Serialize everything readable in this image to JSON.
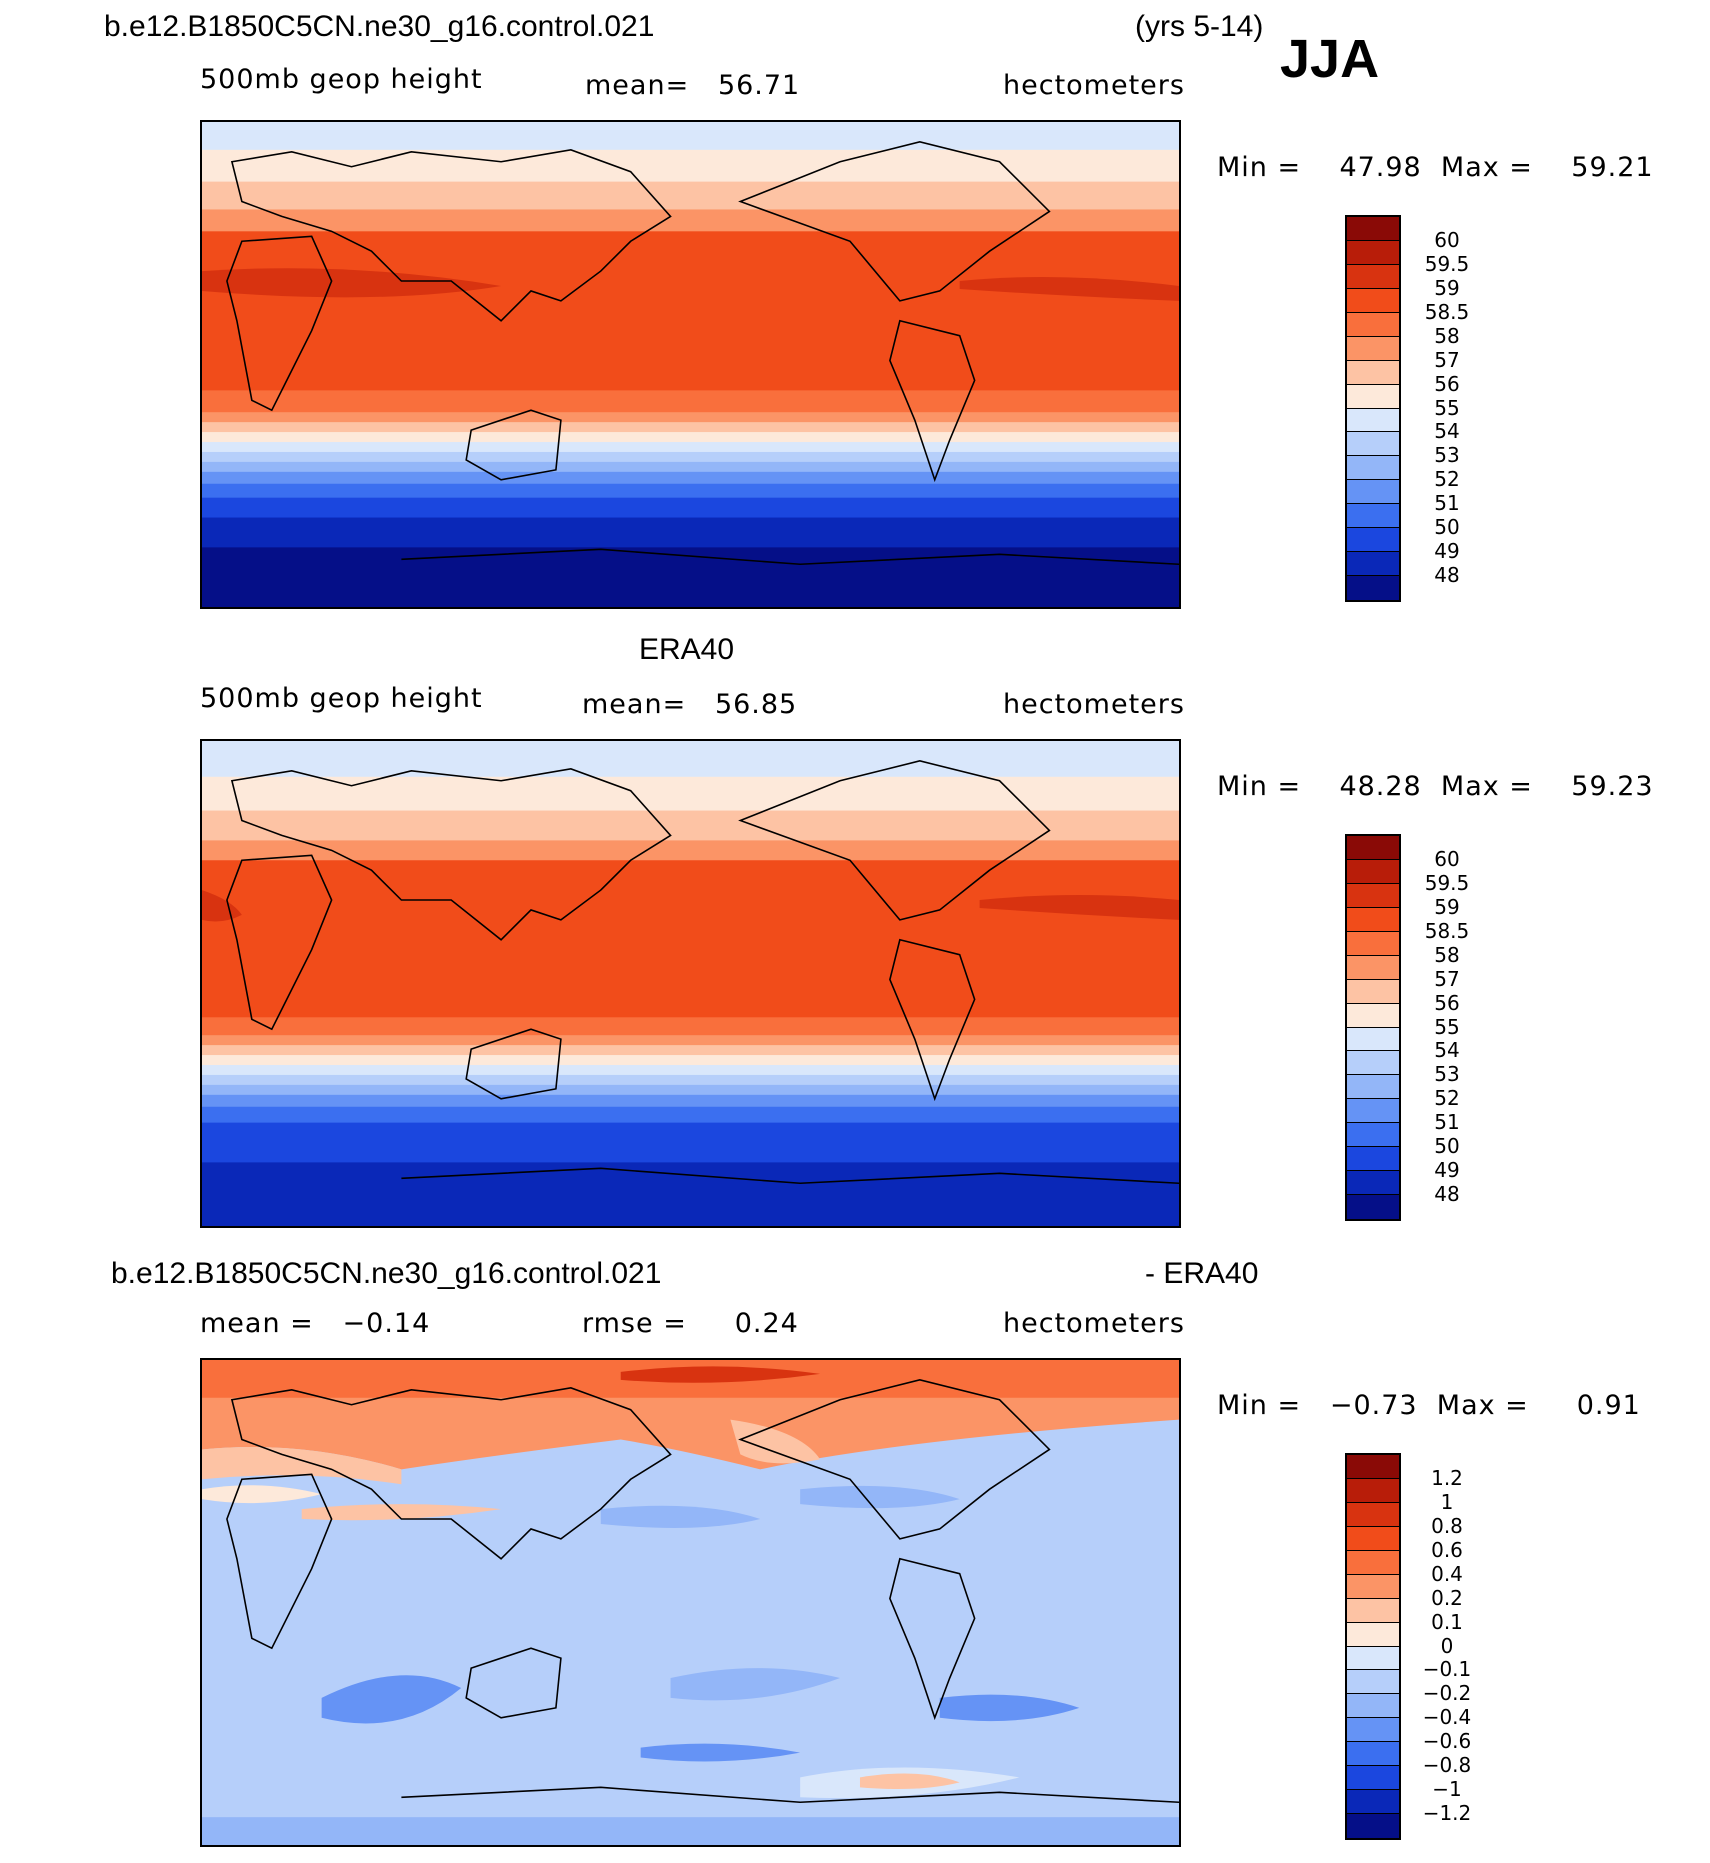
{
  "case_name": "b.e12.B1850C5CN.ne30_g16.control.021",
  "years": "(yrs 5-14)",
  "season": "JJA",
  "panels": [
    {
      "title": "",
      "variable": "500mb geop height",
      "stat1": "mean=   56.71",
      "units": "hectometers",
      "minmax": "Min =    47.98  Max =    59.21",
      "levels": [
        "60",
        "59.5",
        "59",
        "58.5",
        "58",
        "57",
        "56",
        "55",
        "54",
        "53",
        "52",
        "51",
        "50",
        "49",
        "48"
      ],
      "colors": [
        "#8a0a06",
        "#b81d09",
        "#d83310",
        "#f14c1a",
        "#f96f3c",
        "#fb9466",
        "#fdc3a4",
        "#fde9da",
        "#d9e7fb",
        "#b6cffa",
        "#93b6f8",
        "#6593f5",
        "#3b6ff0",
        "#1b47df",
        "#0a28b8",
        "#050f88"
      ]
    },
    {
      "title": "ERA40",
      "variable": "500mb geop height",
      "stat1": "mean=   56.85",
      "units": "hectometers",
      "minmax": "Min =    48.28  Max =    59.23",
      "levels": [
        "60",
        "59.5",
        "59",
        "58.5",
        "58",
        "57",
        "56",
        "55",
        "54",
        "53",
        "52",
        "51",
        "50",
        "49",
        "48"
      ],
      "colors": [
        "#8a0a06",
        "#b81d09",
        "#d83310",
        "#f14c1a",
        "#f96f3c",
        "#fb9466",
        "#fdc3a4",
        "#fde9da",
        "#d9e7fb",
        "#b6cffa",
        "#93b6f8",
        "#6593f5",
        "#3b6ff0",
        "#1b47df",
        "#0a28b8",
        "#050f88"
      ]
    },
    {
      "title_left": "b.e12.B1850C5CN.ne30_g16.control.021",
      "title_right": "- ERA40",
      "stat1": "mean =   −0.14",
      "stat2": "rmse =     0.24",
      "units": "hectometers",
      "minmax": "Min =   −0.73  Max =     0.91",
      "levels": [
        "1.2",
        "1",
        "0.8",
        "0.6",
        "0.4",
        "0.2",
        "0.1",
        "0",
        "−0.1",
        "−0.2",
        "−0.4",
        "−0.6",
        "−0.8",
        "−1",
        "−1.2"
      ],
      "colors": [
        "#8a0a06",
        "#b81d09",
        "#d83310",
        "#f14c1a",
        "#f96f3c",
        "#fb9466",
        "#fdc3a4",
        "#fde9da",
        "#d9e7fb",
        "#b6cffa",
        "#93b6f8",
        "#6593f5",
        "#3b6ff0",
        "#1b47df",
        "#0a28b8",
        "#050f88"
      ]
    }
  ]
}
